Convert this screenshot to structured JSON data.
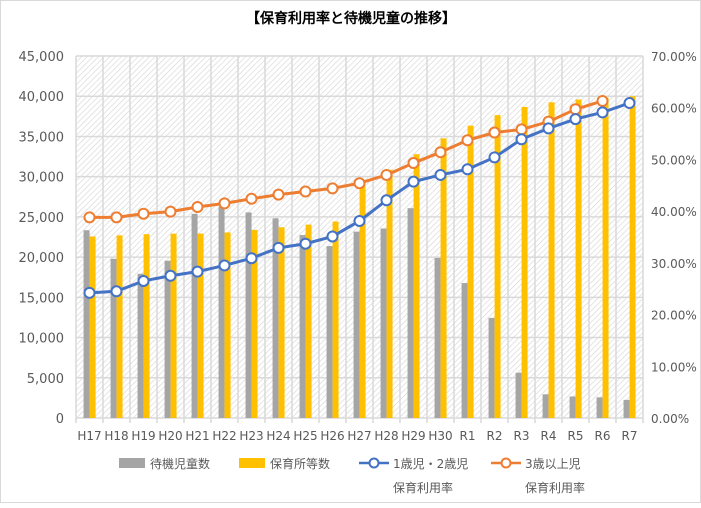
{
  "chart_data": {
    "type": "bar+line",
    "title": "【保育利用率と待機児童の推移】",
    "categories": [
      "H17",
      "H18",
      "H19",
      "H20",
      "H21",
      "H22",
      "H23",
      "H24",
      "H25",
      "H26",
      "H27",
      "H28",
      "H29",
      "H30",
      "R1",
      "R2",
      "R3",
      "R4",
      "R5",
      "R6",
      "R7"
    ],
    "left_axis": {
      "ylim": [
        0,
        45000
      ],
      "ticks": [
        "0",
        "5,000",
        "10,000",
        "15,000",
        "20,000",
        "25,000",
        "30,000",
        "35,000",
        "40,000",
        "45,000"
      ]
    },
    "right_axis": {
      "ylim": [
        0,
        70
      ],
      "ticks": [
        "0.00%",
        "10.00%",
        "20.00%",
        "30.00%",
        "40.00%",
        "50.00%",
        "60.00%",
        "70.00%"
      ]
    },
    "grid": true,
    "legend_position": "bottom",
    "series": [
      {
        "name": "待機児童数",
        "type": "bar",
        "axis": "left",
        "color": "#a5a5a5",
        "values": [
          23338,
          19794,
          17926,
          19550,
          25384,
          26275,
          25556,
          24825,
          22741,
          21371,
          23167,
          23553,
          26081,
          19895,
          16772,
          12439,
          5634,
          2944,
          2680,
          2567,
          2254
        ]
      },
      {
        "name": "保育所等数",
        "type": "bar",
        "axis": "left",
        "color": "#ffc000",
        "values": [
          22570,
          22699,
          22848,
          22909,
          22925,
          23068,
          23385,
          23711,
          24038,
          24425,
          28783,
          30859,
          32793,
          34763,
          36345,
          37652,
          38666,
          39244,
          39589,
          39805,
          39999
        ]
      },
      {
        "name": "1歳児・2歳児",
        "name2": "保育利用率",
        "type": "line",
        "axis": "right",
        "color": "#4472c4",
        "values": [
          24.2,
          24.5,
          26.5,
          27.5,
          28.3,
          29.5,
          30.9,
          32.9,
          33.7,
          35.1,
          38.1,
          42.1,
          45.7,
          47.0,
          48.1,
          50.4,
          53.9,
          56.0,
          57.8,
          59.1,
          60.9
        ]
      },
      {
        "name": "3歳以上児",
        "name2": "保育利用率",
        "type": "line",
        "axis": "right",
        "color": "#ed7d31",
        "values": [
          38.8,
          38.8,
          39.5,
          39.9,
          40.8,
          41.5,
          42.4,
          43.2,
          43.8,
          44.4,
          45.4,
          47.0,
          49.3,
          51.4,
          53.7,
          55.2,
          55.8,
          57.3,
          59.7,
          61.3,
          null
        ]
      }
    ]
  }
}
